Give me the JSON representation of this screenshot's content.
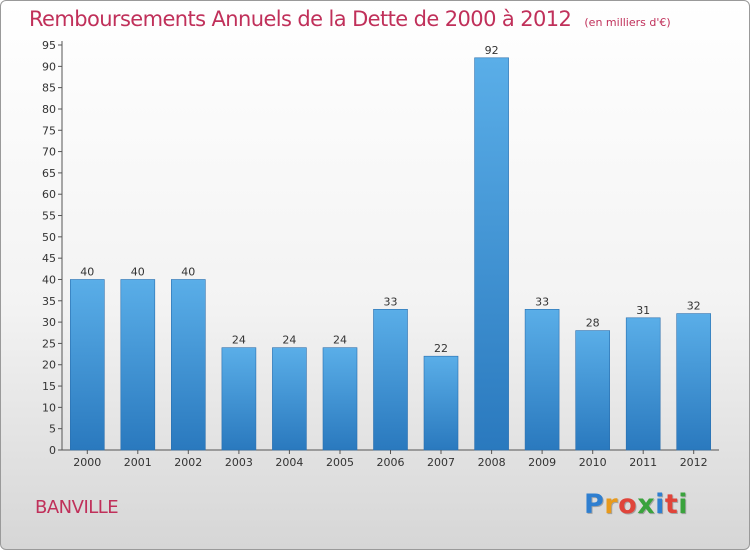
{
  "chart_data": {
    "type": "bar",
    "title": "Remboursements Annuels de la Dette de 2000 à 2012",
    "unit_note": "(en milliers d'€)",
    "categories": [
      "2000",
      "2001",
      "2002",
      "2003",
      "2004",
      "2005",
      "2006",
      "2007",
      "2008",
      "2009",
      "2010",
      "2011",
      "2012"
    ],
    "values": [
      40,
      40,
      40,
      24,
      24,
      24,
      33,
      22,
      92,
      33,
      28,
      31,
      32
    ],
    "ylim": [
      0,
      95
    ],
    "ytick_step": 5,
    "xlabel": "",
    "ylabel": "",
    "grid": false,
    "bar_color": "#3d8fd3"
  },
  "footer": {
    "town": "BANVILLE",
    "logo_letters": [
      "P",
      "r",
      "o",
      "x",
      "i",
      "t",
      "i"
    ],
    "logo_colors": [
      "#2f7fd0",
      "#e89a1c",
      "#e0443a",
      "#3aa33d",
      "#2f7fd0",
      "#e0443a",
      "#3aa33d"
    ]
  }
}
